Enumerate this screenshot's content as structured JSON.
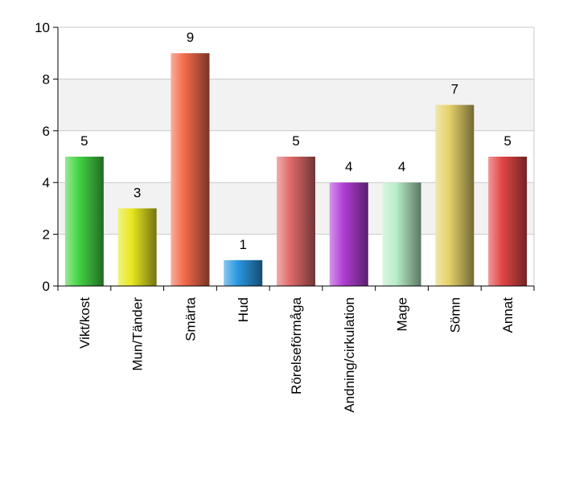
{
  "chart_data": {
    "type": "bar",
    "categories": [
      "Vikt/kost",
      "Mun/Tänder",
      "Smärta",
      "Hud",
      "Rörelseförmåga",
      "Andning/cirkulation",
      "Mage",
      "Sömn",
      "Annat"
    ],
    "values": [
      5,
      3,
      9,
      1,
      5,
      4,
      4,
      7,
      5
    ],
    "colors": [
      "#44d444",
      "#e8e820",
      "#f26a4a",
      "#2a98e2",
      "#e06a6a",
      "#b23ed6",
      "#b8eec8",
      "#e6d26a",
      "#e44646"
    ],
    "ylim": [
      0,
      10
    ],
    "yticks": [
      0,
      2,
      4,
      6,
      8,
      10
    ],
    "grid": true
  }
}
